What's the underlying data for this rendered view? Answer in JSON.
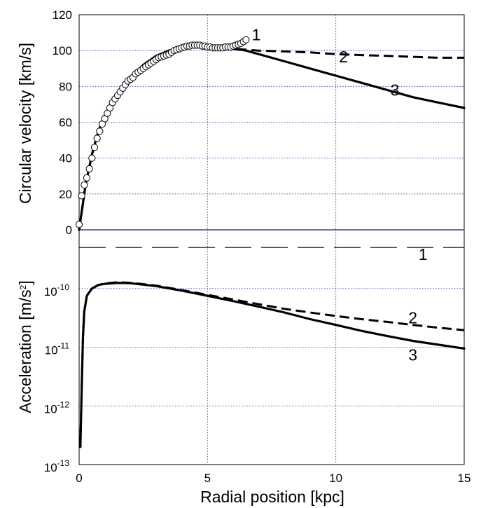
{
  "chart_data": [
    {
      "type": "line",
      "title": "",
      "xlabel": "",
      "ylabel": "Circular velocity [km/s]",
      "xlim": [
        0,
        15
      ],
      "ylim": [
        0,
        120
      ],
      "x_ticks": [
        "0",
        "5",
        "10",
        "15"
      ],
      "y_ticks": [
        "0",
        "20",
        "40",
        "60",
        "80",
        "100",
        "120"
      ],
      "grid": true,
      "series": [
        {
          "name": "1",
          "style": "open-circles",
          "x": [
            0.0,
            0.1,
            0.2,
            0.3,
            0.4,
            0.5,
            0.6,
            0.7,
            0.8,
            0.9,
            1.0,
            1.1,
            1.2,
            1.3,
            1.4,
            1.5,
            1.6,
            1.7,
            1.8,
            1.9,
            2.0,
            2.1,
            2.2,
            2.3,
            2.4,
            2.5,
            2.6,
            2.7,
            2.8,
            2.9,
            3.0,
            3.1,
            3.2,
            3.3,
            3.4,
            3.5,
            3.6,
            3.7,
            3.8,
            3.9,
            4.0,
            4.1,
            4.2,
            4.3,
            4.4,
            4.5,
            4.6,
            4.7,
            4.8,
            4.9,
            5.0,
            5.1,
            5.2,
            5.3,
            5.4,
            5.5,
            5.6,
            5.7,
            5.8,
            5.9,
            6.0,
            6.1,
            6.2,
            6.3,
            6.4,
            6.5
          ],
          "values": [
            3,
            19,
            25,
            29,
            34,
            40,
            46,
            51,
            55,
            59,
            62,
            65,
            68,
            71,
            73,
            75,
            77,
            79,
            81,
            83,
            84,
            85,
            87,
            88,
            89,
            90,
            91,
            92,
            93,
            94,
            95,
            96,
            96.5,
            97,
            97.5,
            98,
            99,
            100,
            100.5,
            101,
            101.5,
            102,
            102.5,
            102.5,
            103,
            103,
            103,
            103,
            102.5,
            102.5,
            102,
            102,
            101.5,
            101.5,
            101.5,
            101.5,
            101.5,
            102,
            102,
            102,
            102.5,
            103,
            103.5,
            104,
            105,
            106
          ]
        },
        {
          "name": "2",
          "style": "dashed",
          "x": [
            0,
            0.25,
            0.5,
            0.75,
            1.0,
            1.5,
            2.0,
            2.5,
            3.0,
            3.5,
            4.0,
            4.5,
            5.0,
            5.5,
            6.0,
            6.5,
            7.0,
            8.0,
            9.0,
            10.0,
            11.0,
            12.0,
            13.0,
            14.0,
            15.0
          ],
          "values": [
            0,
            25,
            42,
            55,
            64,
            75,
            85,
            92,
            97,
            100,
            101.5,
            102.5,
            102.5,
            102,
            101,
            100.5,
            100,
            99.5,
            99,
            98,
            97.5,
            97,
            96.5,
            96,
            96
          ]
        },
        {
          "name": "3",
          "style": "solid",
          "x": [
            0,
            0.25,
            0.5,
            0.75,
            1.0,
            1.5,
            2.0,
            2.5,
            3.0,
            3.5,
            4.0,
            4.5,
            5.0,
            5.5,
            6.0,
            6.5,
            7.0,
            8.0,
            9.0,
            10.0,
            11.0,
            12.0,
            13.0,
            14.0,
            15.0
          ],
          "values": [
            0,
            25,
            42,
            55,
            64,
            75,
            85,
            92,
            97,
            100,
            101.5,
            102.5,
            102.5,
            102,
            101,
            100,
            98,
            94,
            90,
            86,
            82,
            78,
            74,
            71,
            68
          ]
        }
      ],
      "curve_labels": [
        "1",
        "2",
        "3"
      ]
    },
    {
      "type": "line",
      "title": "",
      "xlabel": "Radial position [kpc]",
      "ylabel": "Acceleration [m/s2]",
      "ylabel_parts": {
        "main": "Acceleration [m/s",
        "sup": "2",
        "close": "]"
      },
      "xlim": [
        0,
        15
      ],
      "ylim": [
        1e-13,
        1e-09
      ],
      "yscale": "log",
      "x_ticks": [
        "0",
        "5",
        "10",
        "15"
      ],
      "y_ticks": [
        {
          "base": "10",
          "exp": "-13"
        },
        {
          "base": "10",
          "exp": "-12"
        },
        {
          "base": "10",
          "exp": "-11"
        },
        {
          "base": "10",
          "exp": "-10"
        }
      ],
      "grid": true,
      "series": [
        {
          "name": "1",
          "style": "long-dashed",
          "x": [
            0,
            15
          ],
          "values": [
            5e-10,
            5e-10
          ]
        },
        {
          "name": "2",
          "style": "dashed",
          "x": [
            0.05,
            0.1,
            0.15,
            0.2,
            0.3,
            0.5,
            0.75,
            1.0,
            1.5,
            2.0,
            3.0,
            4.0,
            5.0,
            6.0,
            7.0,
            8.0,
            9.0,
            10.0,
            11.0,
            12.0,
            13.0,
            14.0,
            15.0
          ],
          "values": [
            2e-13,
            2e-12,
            1.5e-11,
            4e-11,
            7.5e-11,
            1e-10,
            1.15e-10,
            1.22e-10,
            1.28e-10,
            1.25e-10,
            1.12e-10,
            9.4e-11,
            7.8e-11,
            6.5e-11,
            5.4e-11,
            4.5e-11,
            3.9e-11,
            3.4e-11,
            3e-11,
            2.7e-11,
            2.4e-11,
            2.15e-11,
            1.95e-11
          ]
        },
        {
          "name": "3",
          "style": "solid",
          "x": [
            0.05,
            0.1,
            0.15,
            0.2,
            0.3,
            0.5,
            0.75,
            1.0,
            1.5,
            2.0,
            3.0,
            4.0,
            5.0,
            6.0,
            7.0,
            8.0,
            9.0,
            10.0,
            11.0,
            12.0,
            13.0,
            14.0,
            15.0
          ],
          "values": [
            2e-13,
            2e-12,
            1.5e-11,
            4e-11,
            7.5e-11,
            1e-10,
            1.15e-10,
            1.2e-10,
            1.25e-10,
            1.23e-10,
            1.1e-10,
            9.2e-11,
            7.5e-11,
            6.1e-11,
            4.9e-11,
            3.9e-11,
            3e-11,
            2.4e-11,
            1.9e-11,
            1.55e-11,
            1.28e-11,
            1.1e-11,
            9.5e-12
          ]
        }
      ],
      "curve_labels": [
        "1",
        "2",
        "3"
      ]
    }
  ]
}
